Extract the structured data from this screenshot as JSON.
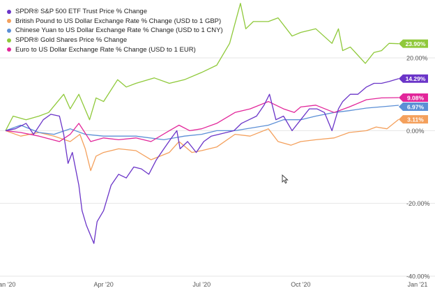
{
  "chart_data": {
    "type": "line",
    "title": "",
    "xlabel": "",
    "ylabel": "",
    "x_range": [
      "2020-01-01",
      "2020-12-31"
    ],
    "x_ticks": [
      {
        "date": "2020-01-01",
        "label": "Jan '20"
      },
      {
        "date": "2020-04-01",
        "label": "Apr '20"
      },
      {
        "date": "2020-07-01",
        "label": "Jul '20"
      },
      {
        "date": "2020-10-01",
        "label": "Oct '20"
      },
      {
        "date": "2020-12-31",
        "label": "Jan '21"
      }
    ],
    "ylim": [
      -40,
      34
    ],
    "y_ticks": [
      20,
      0,
      -20,
      -40
    ],
    "y_tick_labels": [
      "20.00%",
      "0.00%",
      "-20.00%",
      "-40.00%"
    ],
    "grid": "horizontal",
    "legend_position": "top-left",
    "cursor_icon": "mouse-pointer-icon",
    "series": [
      {
        "name": "SPDR® S&P 500 ETF Trust Price % Change",
        "color": "#6a34c8",
        "end_label": "14.29%",
        "points": [
          [
            "2020-01-01",
            0
          ],
          [
            "2020-01-10",
            0.5
          ],
          [
            "2020-01-20",
            2
          ],
          [
            "2020-01-27",
            -1
          ],
          [
            "2020-02-05",
            3
          ],
          [
            "2020-02-12",
            4.5
          ],
          [
            "2020-02-20",
            4
          ],
          [
            "2020-02-24",
            -1
          ],
          [
            "2020-02-28",
            -9
          ],
          [
            "2020-03-03",
            -6
          ],
          [
            "2020-03-09",
            -15
          ],
          [
            "2020-03-12",
            -22
          ],
          [
            "2020-03-16",
            -26
          ],
          [
            "2020-03-23",
            -31
          ],
          [
            "2020-03-26",
            -25
          ],
          [
            "2020-04-01",
            -22
          ],
          [
            "2020-04-08",
            -15
          ],
          [
            "2020-04-15",
            -12
          ],
          [
            "2020-04-22",
            -13
          ],
          [
            "2020-04-29",
            -10
          ],
          [
            "2020-05-06",
            -10.5
          ],
          [
            "2020-05-13",
            -12
          ],
          [
            "2020-05-20",
            -8
          ],
          [
            "2020-05-27",
            -5
          ],
          [
            "2020-06-03",
            -2
          ],
          [
            "2020-06-08",
            0
          ],
          [
            "2020-06-11",
            -5
          ],
          [
            "2020-06-18",
            -3
          ],
          [
            "2020-06-26",
            -6
          ],
          [
            "2020-07-03",
            -3
          ],
          [
            "2020-07-10",
            -1.5
          ],
          [
            "2020-07-17",
            -1
          ],
          [
            "2020-07-24",
            -0.5
          ],
          [
            "2020-07-31",
            0
          ],
          [
            "2020-08-07",
            2
          ],
          [
            "2020-08-14",
            3
          ],
          [
            "2020-08-21",
            4
          ],
          [
            "2020-08-28",
            7
          ],
          [
            "2020-09-02",
            10
          ],
          [
            "2020-09-08",
            3
          ],
          [
            "2020-09-15",
            4
          ],
          [
            "2020-09-23",
            0
          ],
          [
            "2020-10-01",
            3
          ],
          [
            "2020-10-09",
            6
          ],
          [
            "2020-10-16",
            6
          ],
          [
            "2020-10-23",
            5
          ],
          [
            "2020-10-30",
            0
          ],
          [
            "2020-11-05",
            6
          ],
          [
            "2020-11-09",
            8
          ],
          [
            "2020-11-16",
            10
          ],
          [
            "2020-11-23",
            10
          ],
          [
            "2020-12-01",
            12
          ],
          [
            "2020-12-08",
            13
          ],
          [
            "2020-12-15",
            13
          ],
          [
            "2020-12-22",
            13.5
          ],
          [
            "2020-12-31",
            14.29
          ]
        ]
      },
      {
        "name": "British Pound to US Dollar Exchange Rate % Change (USD to 1 GBP)",
        "color": "#f4a05c",
        "end_label": "3.11%",
        "points": [
          [
            "2020-01-01",
            0
          ],
          [
            "2020-01-15",
            -1.5
          ],
          [
            "2020-02-01",
            -0.5
          ],
          [
            "2020-02-15",
            -1.5
          ],
          [
            "2020-03-01",
            -3
          ],
          [
            "2020-03-10",
            -1
          ],
          [
            "2020-03-15",
            -5
          ],
          [
            "2020-03-20",
            -11
          ],
          [
            "2020-03-25",
            -7
          ],
          [
            "2020-04-01",
            -6
          ],
          [
            "2020-04-15",
            -5
          ],
          [
            "2020-05-01",
            -5.5
          ],
          [
            "2020-05-15",
            -8
          ],
          [
            "2020-06-01",
            -6
          ],
          [
            "2020-06-10",
            -3
          ],
          [
            "2020-06-22",
            -6
          ],
          [
            "2020-07-01",
            -5.5
          ],
          [
            "2020-07-15",
            -4.5
          ],
          [
            "2020-08-01",
            -1
          ],
          [
            "2020-08-15",
            -1.5
          ],
          [
            "2020-09-01",
            0.5
          ],
          [
            "2020-09-10",
            -3
          ],
          [
            "2020-09-22",
            -4
          ],
          [
            "2020-10-01",
            -3
          ],
          [
            "2020-10-15",
            -2.5
          ],
          [
            "2020-11-01",
            -2
          ],
          [
            "2020-11-15",
            -0.5
          ],
          [
            "2020-12-01",
            0
          ],
          [
            "2020-12-10",
            1
          ],
          [
            "2020-12-20",
            0.5
          ],
          [
            "2020-12-31",
            3.11
          ]
        ]
      },
      {
        "name": "Chinese Yuan to US Dollar Exchange Rate % Change (USD to 1 CNY)",
        "color": "#5b8fd6",
        "end_label": "6.97%",
        "points": [
          [
            "2020-01-01",
            0
          ],
          [
            "2020-01-15",
            1.5
          ],
          [
            "2020-02-01",
            -0.5
          ],
          [
            "2020-02-15",
            -1
          ],
          [
            "2020-03-01",
            0.5
          ],
          [
            "2020-03-15",
            -1
          ],
          [
            "2020-04-01",
            -1.5
          ],
          [
            "2020-05-01",
            -1.5
          ],
          [
            "2020-05-27",
            -2.5
          ],
          [
            "2020-06-15",
            -1.5
          ],
          [
            "2020-07-01",
            -1
          ],
          [
            "2020-07-15",
            0
          ],
          [
            "2020-08-01",
            0
          ],
          [
            "2020-09-01",
            1.5
          ],
          [
            "2020-09-15",
            3
          ],
          [
            "2020-10-01",
            3
          ],
          [
            "2020-10-15",
            4
          ],
          [
            "2020-11-01",
            5
          ],
          [
            "2020-11-15",
            5.5
          ],
          [
            "2020-12-01",
            6.2
          ],
          [
            "2020-12-31",
            6.97
          ]
        ]
      },
      {
        "name": "SPDR® Gold Shares Price % Change",
        "color": "#8fc93a",
        "end_label": "23.90%",
        "points": [
          [
            "2020-01-01",
            0
          ],
          [
            "2020-01-08",
            4
          ],
          [
            "2020-01-20",
            3
          ],
          [
            "2020-02-01",
            4
          ],
          [
            "2020-02-10",
            5
          ],
          [
            "2020-02-24",
            10
          ],
          [
            "2020-03-01",
            6
          ],
          [
            "2020-03-09",
            10
          ],
          [
            "2020-03-19",
            3
          ],
          [
            "2020-03-25",
            9
          ],
          [
            "2020-04-01",
            8
          ],
          [
            "2020-04-14",
            14
          ],
          [
            "2020-04-22",
            12
          ],
          [
            "2020-05-01",
            13
          ],
          [
            "2020-05-18",
            14.5
          ],
          [
            "2020-06-01",
            13
          ],
          [
            "2020-06-15",
            14
          ],
          [
            "2020-07-01",
            16
          ],
          [
            "2020-07-15",
            18
          ],
          [
            "2020-07-27",
            24
          ],
          [
            "2020-08-06",
            35
          ],
          [
            "2020-08-11",
            28
          ],
          [
            "2020-08-18",
            30
          ],
          [
            "2020-09-01",
            30
          ],
          [
            "2020-09-10",
            31
          ],
          [
            "2020-09-23",
            26
          ],
          [
            "2020-10-01",
            27
          ],
          [
            "2020-10-15",
            28
          ],
          [
            "2020-10-30",
            24
          ],
          [
            "2020-11-05",
            28
          ],
          [
            "2020-11-09",
            22
          ],
          [
            "2020-11-16",
            23
          ],
          [
            "2020-11-30",
            18.5
          ],
          [
            "2020-12-08",
            21.5
          ],
          [
            "2020-12-15",
            22
          ],
          [
            "2020-12-22",
            24
          ],
          [
            "2020-12-31",
            23.9
          ]
        ]
      },
      {
        "name": "Euro to US Dollar Exchange Rate % Change (USD to 1 EUR)",
        "color": "#e2269a",
        "end_label": "9.08%",
        "points": [
          [
            "2020-01-01",
            0
          ],
          [
            "2020-01-15",
            -0.5
          ],
          [
            "2020-02-01",
            -1.5
          ],
          [
            "2020-02-20",
            -3
          ],
          [
            "2020-03-01",
            -1
          ],
          [
            "2020-03-09",
            2
          ],
          [
            "2020-03-20",
            -3
          ],
          [
            "2020-04-01",
            -2
          ],
          [
            "2020-04-15",
            -2.5
          ],
          [
            "2020-05-01",
            -2
          ],
          [
            "2020-05-15",
            -3
          ],
          [
            "2020-06-01",
            0
          ],
          [
            "2020-06-10",
            1.5
          ],
          [
            "2020-06-20",
            0
          ],
          [
            "2020-07-01",
            0.5
          ],
          [
            "2020-07-15",
            2
          ],
          [
            "2020-08-01",
            5
          ],
          [
            "2020-08-15",
            6
          ],
          [
            "2020-09-01",
            8
          ],
          [
            "2020-09-15",
            6
          ],
          [
            "2020-09-25",
            5
          ],
          [
            "2020-10-01",
            6.5
          ],
          [
            "2020-10-15",
            7
          ],
          [
            "2020-11-01",
            5
          ],
          [
            "2020-11-15",
            6.5
          ],
          [
            "2020-12-01",
            8.5
          ],
          [
            "2020-12-15",
            9
          ],
          [
            "2020-12-31",
            9.08
          ]
        ]
      }
    ]
  }
}
